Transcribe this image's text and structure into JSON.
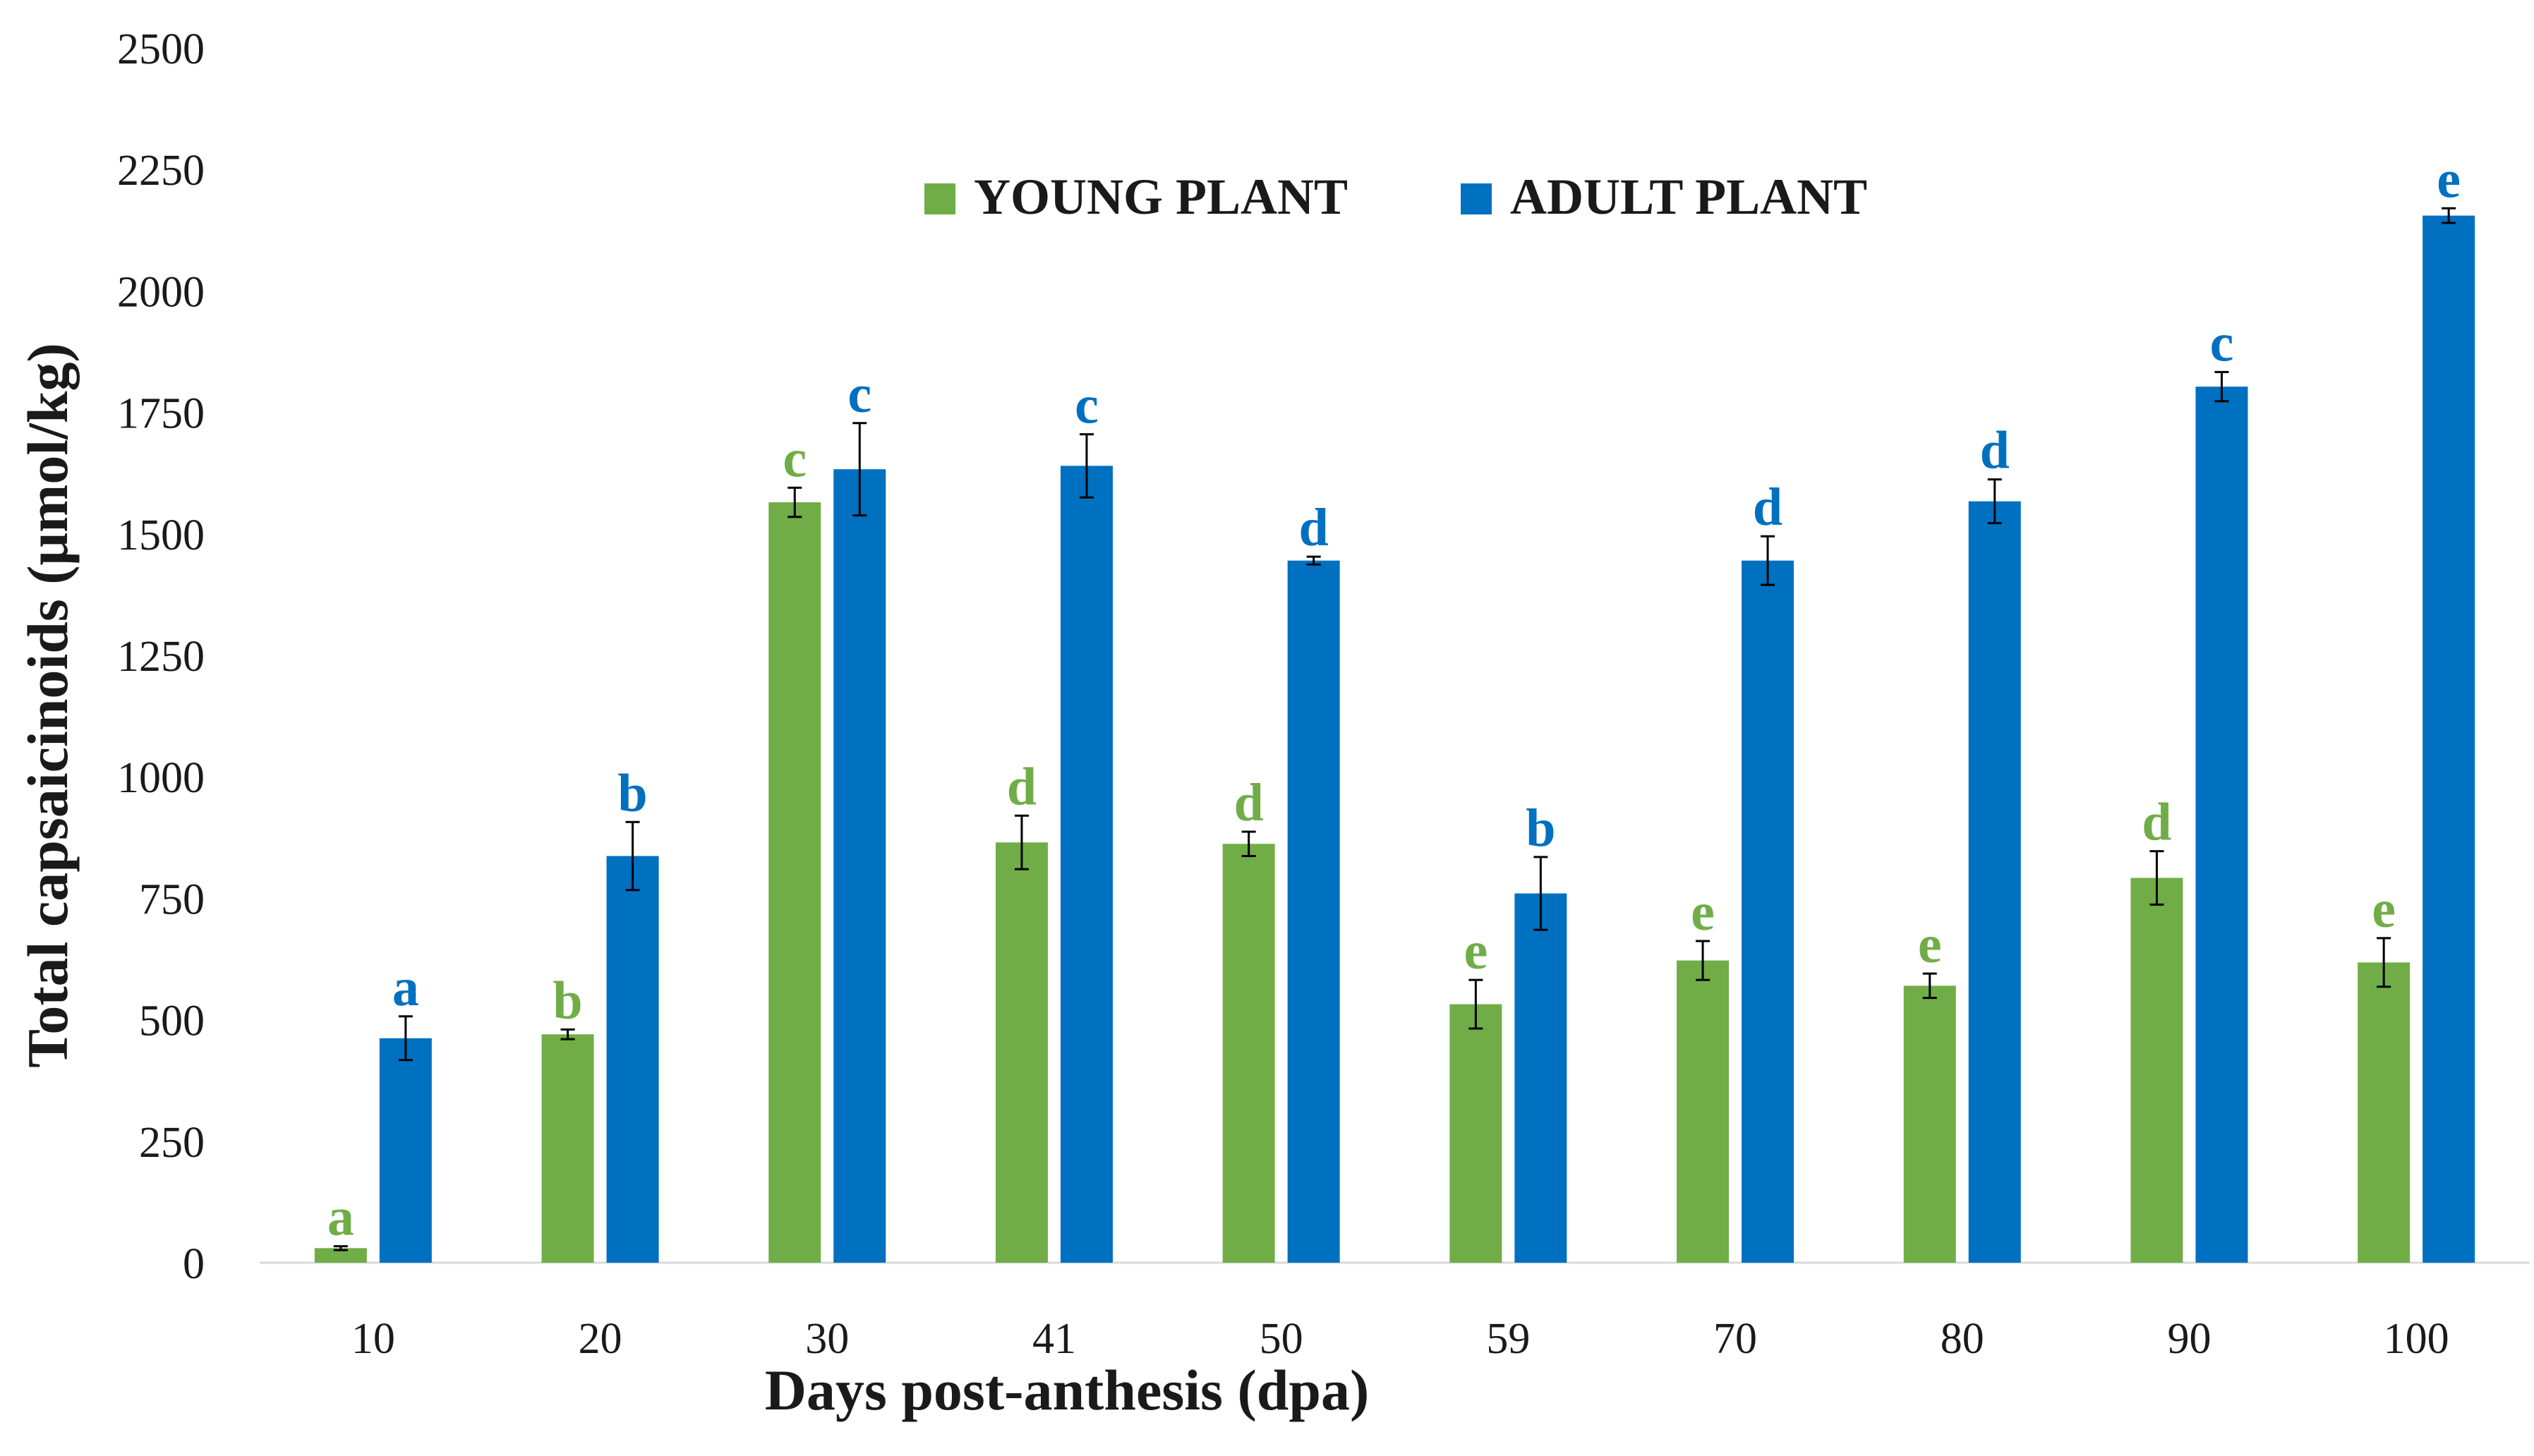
{
  "chart_data": {
    "type": "bar",
    "title": "",
    "xlabel": "Days post-anthesis (dpa)",
    "ylabel": "Total capsaicinoids (μmol/kg)",
    "ylim": [
      0,
      2500
    ],
    "yticks": [
      "0",
      "250",
      "500",
      "750",
      "1000",
      "1250",
      "1500",
      "1750",
      "2000",
      "2250",
      "2500"
    ],
    "categories": [
      "10",
      "20",
      "30",
      "41",
      "50",
      "59",
      "70",
      "80",
      "90",
      "100"
    ],
    "legend_position": "top-center",
    "series": [
      {
        "name": "YOUNG PLANT",
        "color": "#70AD47",
        "values": [
          30,
          470,
          1565,
          865,
          862,
          532,
          622,
          570,
          792,
          618
        ],
        "errors": [
          4,
          10,
          30,
          55,
          25,
          50,
          40,
          25,
          55,
          50
        ],
        "letters": [
          "a",
          "b",
          "c",
          "d",
          "d",
          "e",
          "e",
          "e",
          "d",
          "e"
        ]
      },
      {
        "name": "ADULT PLANT",
        "color": "#0070C0",
        "values": [
          462,
          837,
          1633,
          1640,
          1445,
          760,
          1445,
          1567,
          1803,
          2155
        ],
        "errors": [
          45,
          70,
          95,
          65,
          8,
          75,
          50,
          45,
          30,
          15
        ],
        "letters": [
          "a",
          "b",
          "c",
          "c",
          "d",
          "b",
          "d",
          "d",
          "c",
          "e"
        ]
      }
    ]
  }
}
